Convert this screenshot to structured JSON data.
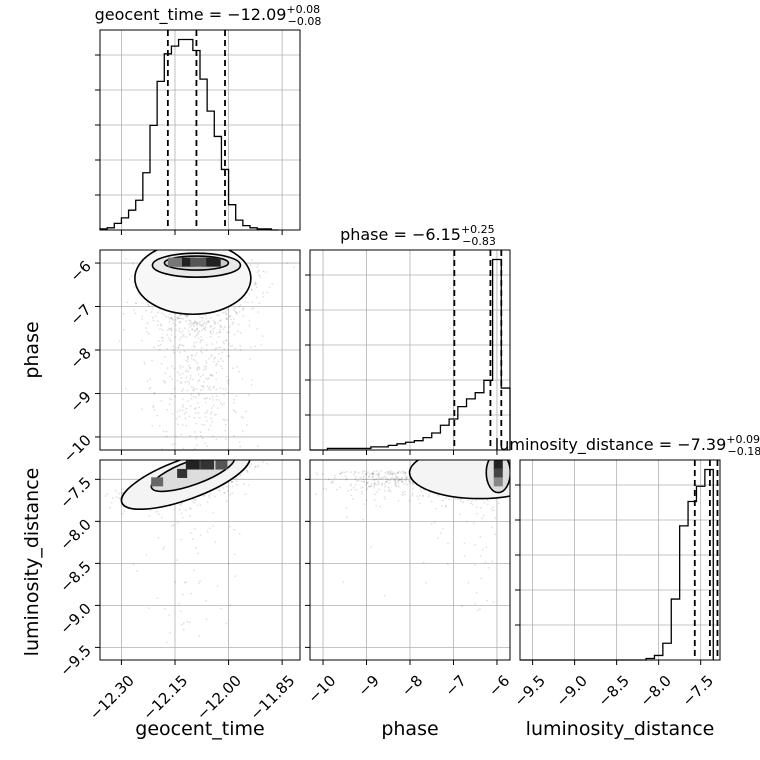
{
  "chart_data": {
    "type": "corner",
    "parameters": [
      "geocent_time",
      "phase",
      "luminosity_distance"
    ],
    "axis_ranges": {
      "geocent_time": [
        -12.36,
        -11.8
      ],
      "phase": [
        -10.3,
        -5.7
      ],
      "luminosity_distance": [
        -9.65,
        -7.27
      ]
    },
    "ticks": {
      "geocent_time": {
        "values": [
          -12.3,
          -12.15,
          -12.0,
          -11.85
        ],
        "labels": [
          "−12.30",
          "−12.15",
          "−12.00",
          "−11.85"
        ]
      },
      "phase": {
        "values": [
          -10,
          -9,
          -8,
          -7,
          -6
        ],
        "labels": [
          "−10",
          "−9",
          "−8",
          "−7",
          "−6"
        ]
      },
      "luminosity_distance": {
        "values": [
          -9.5,
          -9.0,
          -8.5,
          -8.0,
          -7.5
        ],
        "labels": [
          "−9.5",
          "−9.0",
          "−8.5",
          "−8.0",
          "−7.5"
        ]
      }
    },
    "grid": true,
    "summaries": [
      {
        "param": "geocent_time",
        "title_prefix": "geocent_time = −12.09",
        "plus": "+0.08",
        "minus": "−0.08",
        "quantiles": [
          -12.17,
          -12.09,
          -12.01
        ]
      },
      {
        "param": "phase",
        "title_prefix": "phase = −6.15",
        "plus": "+0.25",
        "minus": "−0.83",
        "quantiles": [
          -6.98,
          -6.15,
          -5.9
        ]
      },
      {
        "param": "luminosity_distance",
        "title_prefix": "luminosity_distance = −7.39",
        "plus": "+0.09",
        "minus": "−0.18",
        "quantiles": [
          -7.57,
          -7.39,
          -7.3
        ]
      }
    ],
    "histograms": {
      "geocent_time": {
        "edges": [
          -12.36,
          -12.34,
          -12.32,
          -12.3,
          -12.28,
          -12.26,
          -12.24,
          -12.22,
          -12.2,
          -12.18,
          -12.16,
          -12.14,
          -12.12,
          -12.1,
          -12.08,
          -12.06,
          -12.04,
          -12.02,
          -12.0,
          -11.98,
          -11.96,
          -11.94,
          -11.92,
          -11.9,
          -11.88,
          -11.86
        ],
        "counts": [
          1,
          2,
          6,
          11,
          18,
          27,
          52,
          95,
          135,
          160,
          167,
          173,
          173,
          163,
          137,
          108,
          85,
          55,
          23,
          9,
          4,
          2,
          1,
          1,
          0
        ]
      },
      "phase": {
        "edges": [
          -10.3,
          -10.1,
          -9.9,
          -9.7,
          -9.5,
          -9.3,
          -9.1,
          -8.9,
          -8.7,
          -8.5,
          -8.3,
          -8.1,
          -7.9,
          -7.7,
          -7.5,
          -7.3,
          -7.1,
          -6.9,
          -6.7,
          -6.5,
          -6.3,
          -6.1,
          -5.9,
          -5.7
        ],
        "counts": [
          0,
          0,
          1,
          1,
          1,
          1,
          1,
          2,
          2,
          3,
          4,
          5,
          6,
          8,
          11,
          16,
          20,
          28,
          33,
          37,
          45,
          123,
          40
        ]
      },
      "luminosity_distance": {
        "edges": [
          -9.65,
          -9.55,
          -9.45,
          -9.35,
          -9.25,
          -9.15,
          -9.05,
          -8.95,
          -8.85,
          -8.75,
          -8.65,
          -8.55,
          -8.45,
          -8.35,
          -8.25,
          -8.15,
          -8.05,
          -7.95,
          -7.85,
          -7.75,
          -7.65,
          -7.55,
          -7.45,
          -7.35
        ],
        "counts": [
          0,
          0,
          0,
          0,
          0,
          0,
          0,
          0,
          0,
          0,
          0,
          0,
          0,
          0,
          0,
          1,
          3,
          11,
          40,
          88,
          104,
          114,
          125
        ]
      }
    },
    "scatter_centers": {
      "phase_vs_geocent_time": {
        "x": -12.08,
        "y": -6.0
      },
      "luminosity_distance_vs_geocent_time": {
        "x": -12.08,
        "y": -7.38
      },
      "luminosity_distance_vs_phase": {
        "x": -5.95,
        "y": -7.38
      }
    }
  }
}
